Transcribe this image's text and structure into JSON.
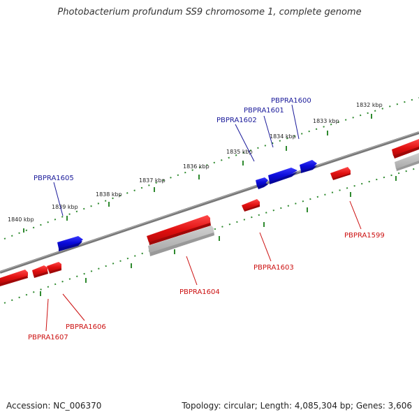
{
  "title": "Photobacterium profundum SS9 chromosome 1, complete genome",
  "footer": {
    "accession": "Accession: NC_006370",
    "summary": "Topology: circular; Length: 4,085,304 bp; Genes: 3,606"
  },
  "colors": {
    "forward_gene": "#0a0ad8",
    "reverse_gene": "#e01010",
    "gene_label_forward": "#1a1a9a",
    "gene_label_reverse": "#cc1010",
    "backbone": "#777777",
    "tick_track": "#2f8a2f",
    "pseudo_track": "#b8b8b8"
  },
  "scale_labels": [
    "1832 kbp",
    "1833 kbp",
    "1834 kbp",
    "1835 kbp",
    "1836 kbp",
    "1837 kbp",
    "1838 kbp",
    "1839 kbp",
    "1840 kbp"
  ],
  "genes": [
    {
      "id": "PBPRA1600",
      "strand": "forward"
    },
    {
      "id": "PBPRA1601",
      "strand": "forward"
    },
    {
      "id": "PBPRA1602",
      "strand": "forward"
    },
    {
      "id": "PBPRA1605",
      "strand": "forward"
    },
    {
      "id": "PBPRA1599",
      "strand": "reverse"
    },
    {
      "id": "PBPRA1603",
      "strand": "reverse"
    },
    {
      "id": "PBPRA1604",
      "strand": "reverse"
    },
    {
      "id": "PBPRA1606",
      "strand": "reverse"
    },
    {
      "id": "PBPRA1607",
      "strand": "reverse"
    }
  ]
}
